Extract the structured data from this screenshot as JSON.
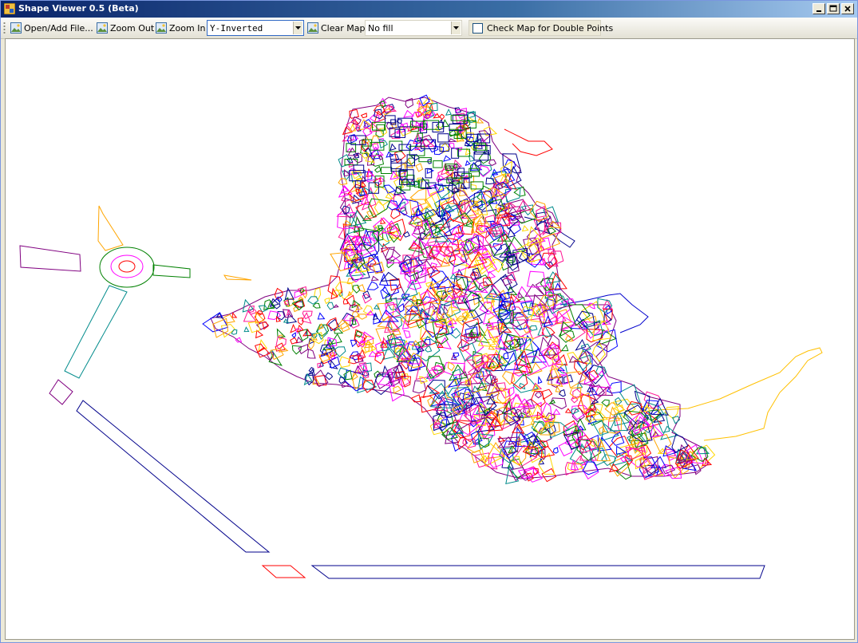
{
  "window": {
    "title": "Shape Viewer 0.5 (Beta)"
  },
  "toolbar": {
    "open_label": "Open/Add File...",
    "zoom_out_label": "Zoom Out",
    "zoom_in_label": "Zoom In",
    "projection_value": "Y-Inverted",
    "clear_label": "Clear Map",
    "fill_value": "No fill",
    "double_points_label": "Check Map for Double Points",
    "double_points_checked": false
  },
  "map": {
    "line_colors": [
      "#00008b",
      "#ff00ff",
      "#ff0000",
      "#008000",
      "#ffa500",
      "#800080",
      "#008b8b",
      "#0000ff",
      "#ffd700",
      "#ff1493"
    ]
  }
}
